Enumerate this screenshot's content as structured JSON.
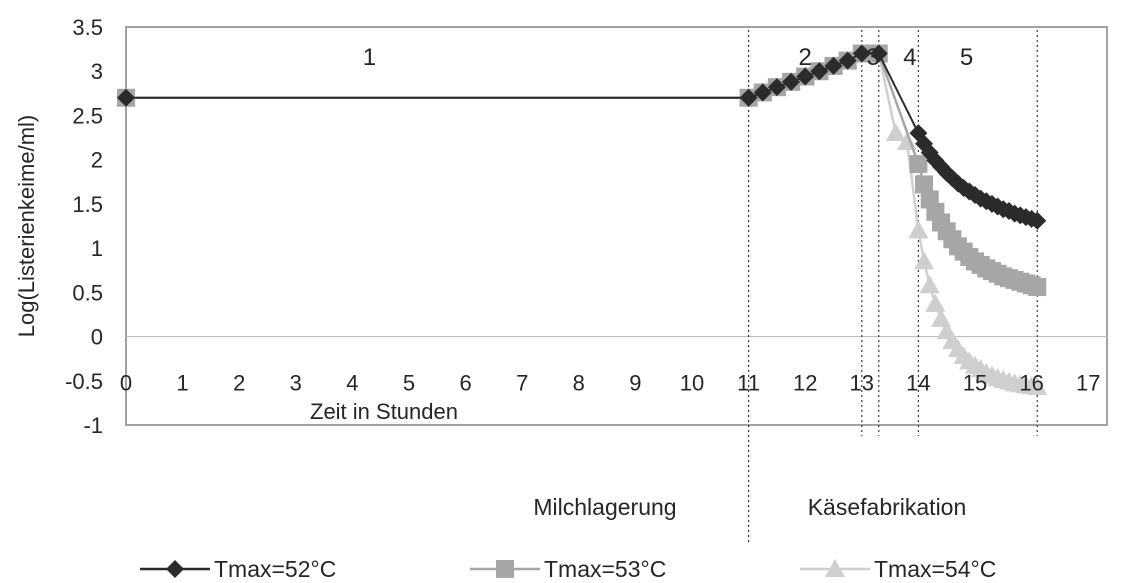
{
  "chart_data": {
    "type": "line",
    "xlabel": "Zeit in Stunden",
    "ylabel": "Log(Listerienkeime/ml)",
    "xlim": [
      0,
      17
    ],
    "ylim": [
      -1,
      3.5
    ],
    "x_ticks": [
      "0",
      "1",
      "2",
      "3",
      "4",
      "5",
      "6",
      "7",
      "8",
      "9",
      "10",
      "11",
      "12",
      "13",
      "14",
      "15",
      "16",
      "17"
    ],
    "y_ticks": [
      "3.5",
      "3",
      "2.5",
      "2",
      "1.5",
      "1",
      "0.5",
      "0",
      "-0.5",
      "-1"
    ],
    "grid": false,
    "legend_position": "bottom",
    "phase_labels": [
      {
        "label": "1",
        "x": 4.3
      },
      {
        "label": "2",
        "x": 12.0
      },
      {
        "label": "3",
        "x": 13.2
      },
      {
        "label": "4",
        "x": 13.85
      },
      {
        "label": "5",
        "x": 14.85
      }
    ],
    "phase_boundaries": [
      11,
      13,
      13.3,
      14,
      16.1
    ],
    "region_labels": {
      "left": "Milchlagerung",
      "right": "Käsefabrikation"
    },
    "series": [
      {
        "name": "Tmax=52°C",
        "marker": "diamond",
        "color": "#2b2b2b",
        "points": [
          [
            0,
            2.7
          ],
          [
            11,
            2.7
          ],
          [
            11.25,
            2.76
          ],
          [
            11.5,
            2.82
          ],
          [
            11.75,
            2.88
          ],
          [
            12,
            2.94
          ],
          [
            12.25,
            3.0
          ],
          [
            12.5,
            3.06
          ],
          [
            12.75,
            3.12
          ],
          [
            13,
            3.2
          ],
          [
            13.3,
            3.2
          ],
          [
            14,
            2.3
          ],
          [
            14.1,
            2.18
          ],
          [
            14.2,
            2.08
          ],
          [
            14.3,
            1.99
          ],
          [
            14.4,
            1.92
          ],
          [
            14.5,
            1.85
          ],
          [
            14.6,
            1.79
          ],
          [
            14.7,
            1.73
          ],
          [
            14.8,
            1.68
          ],
          [
            14.9,
            1.64
          ],
          [
            15,
            1.6
          ],
          [
            15.1,
            1.56
          ],
          [
            15.2,
            1.53
          ],
          [
            15.3,
            1.5
          ],
          [
            15.4,
            1.47
          ],
          [
            15.5,
            1.44
          ],
          [
            15.6,
            1.42
          ],
          [
            15.7,
            1.39
          ],
          [
            15.8,
            1.37
          ],
          [
            15.9,
            1.35
          ],
          [
            16,
            1.33
          ],
          [
            16.1,
            1.31
          ]
        ]
      },
      {
        "name": "Tmax=53°C",
        "marker": "square",
        "color": "#a6a6a6",
        "points": [
          [
            0,
            2.7
          ],
          [
            11,
            2.7
          ],
          [
            11.25,
            2.76
          ],
          [
            11.5,
            2.82
          ],
          [
            11.75,
            2.88
          ],
          [
            12,
            2.94
          ],
          [
            12.25,
            3.0
          ],
          [
            12.5,
            3.06
          ],
          [
            12.75,
            3.12
          ],
          [
            13,
            3.2
          ],
          [
            13.3,
            3.2
          ],
          [
            14,
            1.95
          ],
          [
            14.1,
            1.72
          ],
          [
            14.2,
            1.55
          ],
          [
            14.3,
            1.41
          ],
          [
            14.4,
            1.29
          ],
          [
            14.5,
            1.19
          ],
          [
            14.6,
            1.1
          ],
          [
            14.7,
            1.02
          ],
          [
            14.8,
            0.96
          ],
          [
            14.9,
            0.9
          ],
          [
            15,
            0.85
          ],
          [
            15.1,
            0.81
          ],
          [
            15.2,
            0.77
          ],
          [
            15.3,
            0.74
          ],
          [
            15.4,
            0.71
          ],
          [
            15.5,
            0.68
          ],
          [
            15.6,
            0.66
          ],
          [
            15.7,
            0.64
          ],
          [
            15.8,
            0.62
          ],
          [
            15.9,
            0.6
          ],
          [
            16,
            0.58
          ],
          [
            16.1,
            0.56
          ]
        ]
      },
      {
        "name": "Tmax=54°C",
        "marker": "triangle",
        "color": "#cfcfcf",
        "points": [
          [
            0,
            2.7
          ],
          [
            11,
            2.7
          ],
          [
            11.25,
            2.76
          ],
          [
            11.5,
            2.82
          ],
          [
            11.75,
            2.88
          ],
          [
            12,
            2.94
          ],
          [
            12.25,
            3.0
          ],
          [
            12.5,
            3.06
          ],
          [
            12.75,
            3.12
          ],
          [
            13,
            3.2
          ],
          [
            13.3,
            3.2
          ],
          [
            13.6,
            2.3
          ],
          [
            13.8,
            2.2
          ],
          [
            14,
            1.2
          ],
          [
            14.1,
            0.85
          ],
          [
            14.2,
            0.58
          ],
          [
            14.3,
            0.37
          ],
          [
            14.4,
            0.2
          ],
          [
            14.5,
            0.06
          ],
          [
            14.6,
            -0.05
          ],
          [
            14.7,
            -0.14
          ],
          [
            14.8,
            -0.22
          ],
          [
            14.9,
            -0.28
          ],
          [
            15,
            -0.33
          ],
          [
            15.1,
            -0.37
          ],
          [
            15.2,
            -0.41
          ],
          [
            15.3,
            -0.44
          ],
          [
            15.4,
            -0.47
          ],
          [
            15.5,
            -0.49
          ],
          [
            15.6,
            -0.51
          ],
          [
            15.7,
            -0.53
          ],
          [
            15.8,
            -0.54
          ],
          [
            15.9,
            -0.55
          ],
          [
            16,
            -0.56
          ],
          [
            16.1,
            -0.57
          ]
        ]
      }
    ]
  }
}
